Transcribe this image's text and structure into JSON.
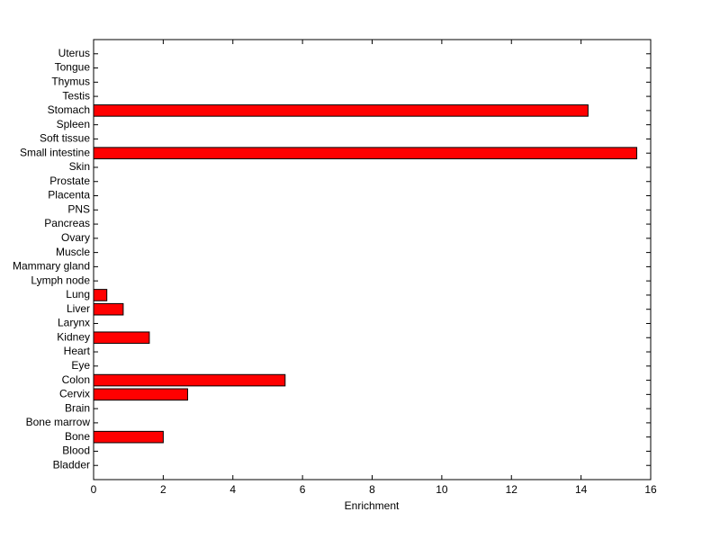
{
  "chart_data": {
    "type": "barh",
    "xlabel": "Enrichment",
    "categories": [
      "Bladder",
      "Blood",
      "Bone",
      "Bone marrow",
      "Brain",
      "Cervix",
      "Colon",
      "Eye",
      "Heart",
      "Kidney",
      "Larynx",
      "Liver",
      "Lung",
      "Lymph node",
      "Mammary gland",
      "Muscle",
      "Ovary",
      "Pancreas",
      "PNS",
      "Placenta",
      "Prostate",
      "Skin",
      "Small intestine",
      "Soft tissue",
      "Spleen",
      "Stomach",
      "Testis",
      "Thymus",
      "Tongue",
      "Uterus"
    ],
    "values": [
      0,
      0,
      2.0,
      0,
      0,
      2.7,
      5.5,
      0,
      0,
      1.6,
      0,
      0.85,
      0.38,
      0,
      0,
      0,
      0,
      0,
      0,
      0,
      0,
      0,
      15.6,
      0,
      0,
      14.2,
      0,
      0,
      0,
      0
    ],
    "color": "#ff0000",
    "xlim": [
      0,
      16
    ],
    "xticks": [
      0,
      2,
      4,
      6,
      8,
      10,
      12,
      14,
      16
    ]
  }
}
